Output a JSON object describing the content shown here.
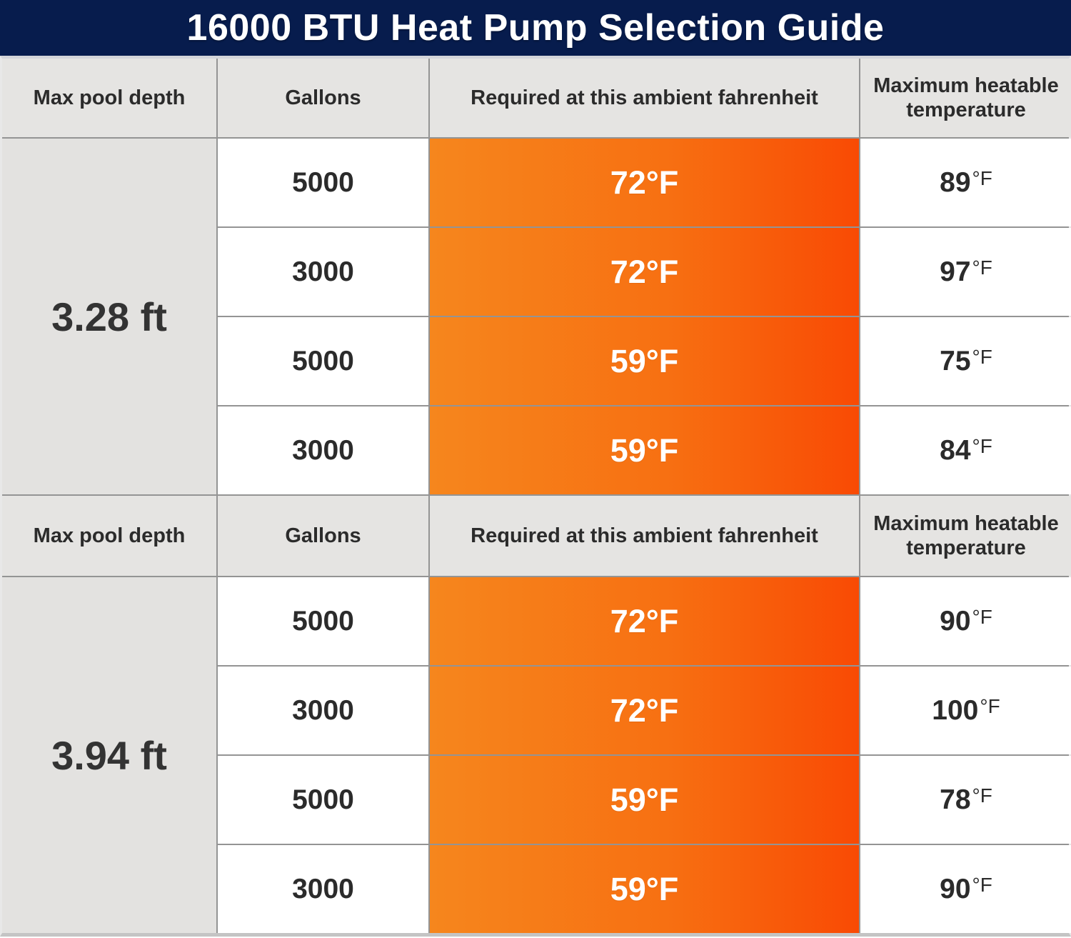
{
  "title": "16000 BTU Heat Pump Selection Guide",
  "columns": {
    "depth": "Max pool depth",
    "gallons": "Gallons",
    "ambient": "Required at this ambient fahrenheit",
    "max_temp": "Maximum heatable temperature"
  },
  "unit": "°F",
  "colors": {
    "title_bar_navy": "#071c4d",
    "header_gray": "#e5e4e2",
    "depth_gray": "#e3e2e0",
    "orange_gradient_start": "#f6861d",
    "orange_gradient_end": "#f94a04",
    "grid_line": "#949494",
    "text_dark": "#2b2b2b",
    "text_white": "#ffffff"
  },
  "sections": [
    {
      "depth": "3.28 ft",
      "rows": [
        {
          "gallons": "5000",
          "ambient": "72°F",
          "max": "89"
        },
        {
          "gallons": "3000",
          "ambient": "72°F",
          "max": "97"
        },
        {
          "gallons": "5000",
          "ambient": "59°F",
          "max": "75"
        },
        {
          "gallons": "3000",
          "ambient": "59°F",
          "max": "84"
        }
      ]
    },
    {
      "depth": "3.94 ft",
      "rows": [
        {
          "gallons": "5000",
          "ambient": "72°F",
          "max": "90"
        },
        {
          "gallons": "3000",
          "ambient": "72°F",
          "max": "100"
        },
        {
          "gallons": "5000",
          "ambient": "59°F",
          "max": "78"
        },
        {
          "gallons": "3000",
          "ambient": "59°F",
          "max": "90"
        }
      ]
    }
  ],
  "chart_data": {
    "type": "table",
    "title": "16000 BTU Heat Pump Selection Guide",
    "columns": [
      "Max pool depth",
      "Gallons",
      "Required at this ambient fahrenheit",
      "Maximum heatable temperature"
    ],
    "rows": [
      [
        "3.28 ft",
        5000,
        "72°F",
        "89°F"
      ],
      [
        "3.28 ft",
        3000,
        "72°F",
        "97°F"
      ],
      [
        "3.28 ft",
        5000,
        "59°F",
        "75°F"
      ],
      [
        "3.28 ft",
        3000,
        "59°F",
        "84°F"
      ],
      [
        "3.94 ft",
        5000,
        "72°F",
        "90°F"
      ],
      [
        "3.94 ft",
        3000,
        "72°F",
        "100°F"
      ],
      [
        "3.94 ft",
        5000,
        "59°F",
        "78°F"
      ],
      [
        "3.94 ft",
        3000,
        "59°F",
        "90°F"
      ]
    ]
  }
}
